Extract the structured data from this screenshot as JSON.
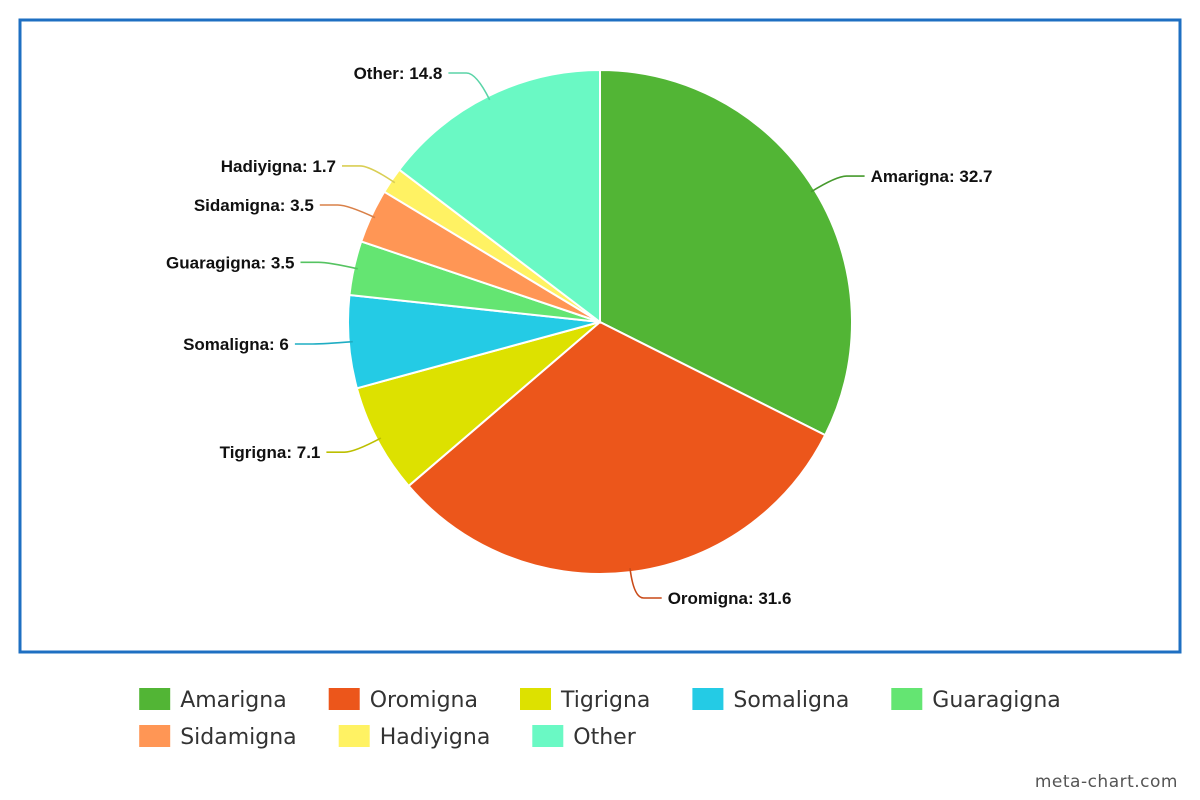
{
  "chart_data": {
    "type": "pie",
    "title": "",
    "slices": [
      {
        "name": "Amarigna",
        "value": 32.7,
        "color": "#52b535"
      },
      {
        "name": "Oromigna",
        "value": 31.6,
        "color": "#ec561b"
      },
      {
        "name": "Tigrigna",
        "value": 7.1,
        "color": "#dde100"
      },
      {
        "name": "Somaligna",
        "value": 6,
        "color": "#24cbe5"
      },
      {
        "name": "Guaragigna",
        "value": 3.5,
        "color": "#64e572"
      },
      {
        "name": "Sidamigna",
        "value": 3.5,
        "color": "#ff9655"
      },
      {
        "name": "Hadiyigna",
        "value": 1.7,
        "color": "#fff263"
      },
      {
        "name": "Other",
        "value": 14.8,
        "color": "#6af9c4"
      }
    ],
    "legend_position": "bottom",
    "frame_color": "#1e6fc2"
  },
  "credit": "meta-chart.com"
}
